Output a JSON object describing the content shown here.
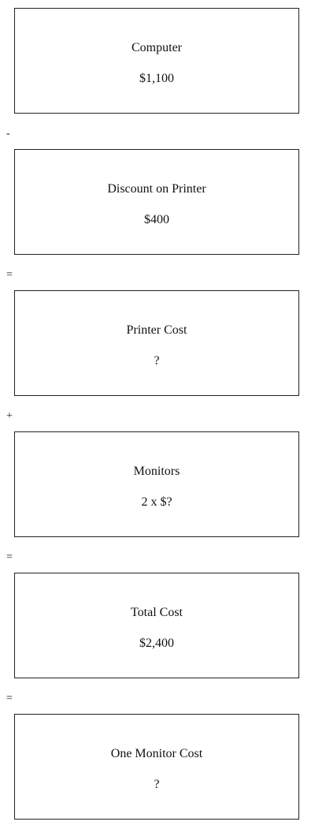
{
  "boxes": [
    {
      "label": "Computer",
      "value": "$1,100"
    },
    {
      "label": "Discount on Printer",
      "value": "$400"
    },
    {
      "label": "Printer Cost",
      "value": "?"
    },
    {
      "label": "Monitors",
      "value": "2 x $?"
    },
    {
      "label": "Total Cost",
      "value": "$2,400"
    },
    {
      "label": "One Monitor Cost",
      "value": "?"
    }
  ],
  "operators": [
    "-",
    "=",
    "+",
    "=",
    "="
  ]
}
